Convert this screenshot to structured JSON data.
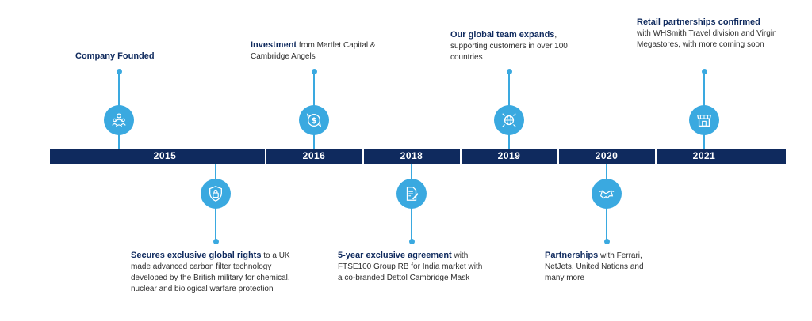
{
  "timeline": {
    "years": [
      "2015",
      "2016",
      "2018",
      "2019",
      "2020",
      "2021"
    ],
    "events": [
      {
        "id": "2015-top",
        "title": "Company Founded",
        "body": "",
        "icon": "team-icon"
      },
      {
        "id": "2015-bottom",
        "title": "Secures exclusive global rights",
        "body": " to a UK made advanced carbon filter technology developed by the British military for chemical, nuclear and biological warfare protection",
        "icon": "lock-shield-icon"
      },
      {
        "id": "2016-top",
        "title": "Investment",
        "body": " from Martlet Capital & Cambridge Angels",
        "icon": "dollar-icon"
      },
      {
        "id": "2018-bottom",
        "title": "5-year exclusive agreement",
        "body": " with FTSE100 Group RB for India market with a co-branded Dettol Cambridge Mask",
        "icon": "document-icon"
      },
      {
        "id": "2019-top",
        "title": "Our global team expands",
        "body": ", supporting customers in over 100 countries",
        "icon": "globe-icon"
      },
      {
        "id": "2020-bottom",
        "title": "Partnerships",
        "body": " with Ferrari, NetJets, United Nations and many more",
        "icon": "handshake-icon"
      },
      {
        "id": "2021-top",
        "title": "Retail partnerships confirmed",
        "body": "with WHSmith Travel division and Virgin Megastores, with more coming soon",
        "icon": "storefront-icon"
      }
    ]
  },
  "colors": {
    "bar": "#0f2a5e",
    "accent": "#3aa9e0",
    "heading": "#0f2a5e",
    "text": "#2d2d2d"
  }
}
